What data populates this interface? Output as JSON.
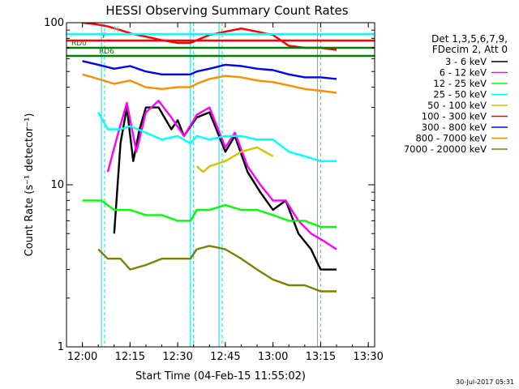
{
  "chart_data": {
    "type": "line",
    "title": "HESSI Observing Summary Count Rates",
    "xlabel": "Start Time (04-Feb-15 11:55:02)",
    "ylabel": "Count Rate (s⁻¹ detector⁻¹)",
    "y_scale": "log",
    "ylim": [
      1,
      100
    ],
    "xlim": [
      "11:55",
      "13:32"
    ],
    "x_ticks": [
      "12:00",
      "12:15",
      "12:30",
      "12:45",
      "13:00",
      "13:15",
      "13:30"
    ],
    "y_ticks": [
      "1",
      "10",
      "100"
    ],
    "grid": false,
    "legend_placement": "right",
    "legend_header": [
      "Det 1,3,5,6,7,9,",
      "FDecim 2, Att 0"
    ],
    "footer_date": "30-Jul-2017 05:31",
    "flags": [
      {
        "label": "RD0",
        "color": "#008000"
      },
      {
        "label": "RD6",
        "color": "#008000"
      },
      {
        "label": "F",
        "color": "#ff0000"
      },
      {
        "label": "N",
        "color": "#00ffff"
      }
    ],
    "gaps": [
      {
        "start": "12:06",
        "end": "12:07"
      },
      {
        "start": "12:34",
        "end": "12:35"
      },
      {
        "start": "12:43",
        "end": "12:44"
      },
      {
        "start": "13:14",
        "end": "13:15"
      }
    ],
    "series": [
      {
        "name": "3 - 6 keV",
        "color": "#000000",
        "values": [
          [
            "12:10",
            5
          ],
          [
            "12:12",
            18
          ],
          [
            "12:14",
            30
          ],
          [
            "12:16",
            14
          ],
          [
            "12:18",
            22
          ],
          [
            "12:20",
            30
          ],
          [
            "12:24",
            30
          ],
          [
            "12:28",
            22
          ],
          [
            "12:30",
            25
          ],
          [
            "12:32",
            20
          ],
          [
            "12:36",
            26
          ],
          [
            "12:40",
            28
          ],
          [
            "12:45",
            16
          ],
          [
            "12:48",
            20
          ],
          [
            "12:52",
            12
          ],
          [
            "12:56",
            9
          ],
          [
            "13:00",
            7
          ],
          [
            "13:04",
            8
          ],
          [
            "13:08",
            5
          ],
          [
            "13:12",
            4
          ],
          [
            "13:15",
            3
          ],
          [
            "13:20",
            3
          ]
        ]
      },
      {
        "name": "6 - 12 keV",
        "color": "#ff00ff",
        "values": [
          [
            "12:08",
            12
          ],
          [
            "12:11",
            20
          ],
          [
            "12:14",
            32
          ],
          [
            "12:17",
            16
          ],
          [
            "12:20",
            28
          ],
          [
            "12:24",
            33
          ],
          [
            "12:28",
            26
          ],
          [
            "12:32",
            20
          ],
          [
            "12:36",
            27
          ],
          [
            "12:40",
            30
          ],
          [
            "12:45",
            17
          ],
          [
            "12:48",
            21
          ],
          [
            "12:52",
            13
          ],
          [
            "12:56",
            10
          ],
          [
            "13:00",
            8
          ],
          [
            "13:04",
            8
          ],
          [
            "13:08",
            6
          ],
          [
            "13:12",
            5
          ],
          [
            "13:16",
            4.5
          ],
          [
            "13:20",
            4
          ]
        ]
      },
      {
        "name": "12 - 25 keV",
        "color": "#00ff00",
        "values": [
          [
            "12:00",
            8
          ],
          [
            "12:06",
            8
          ],
          [
            "12:10",
            7
          ],
          [
            "12:15",
            7
          ],
          [
            "12:20",
            6.5
          ],
          [
            "12:25",
            6.5
          ],
          [
            "12:30",
            6
          ],
          [
            "12:34",
            6
          ],
          [
            "12:36",
            7
          ],
          [
            "12:40",
            7
          ],
          [
            "12:45",
            7.5
          ],
          [
            "12:50",
            7
          ],
          [
            "12:55",
            7
          ],
          [
            "13:00",
            6.5
          ],
          [
            "13:05",
            6
          ],
          [
            "13:10",
            6
          ],
          [
            "13:15",
            5.5
          ],
          [
            "13:20",
            5.5
          ]
        ]
      },
      {
        "name": "25 - 50 keV",
        "color": "#00ffff",
        "values": [
          [
            "12:05",
            28
          ],
          [
            "12:08",
            22
          ],
          [
            "12:12",
            22
          ],
          [
            "12:15",
            23
          ],
          [
            "12:20",
            21
          ],
          [
            "12:25",
            19
          ],
          [
            "12:30",
            20
          ],
          [
            "12:34",
            18
          ],
          [
            "12:36",
            20
          ],
          [
            "12:40",
            19
          ],
          [
            "12:45",
            20
          ],
          [
            "12:50",
            20
          ],
          [
            "12:55",
            19
          ],
          [
            "13:00",
            19
          ],
          [
            "13:05",
            16
          ],
          [
            "13:10",
            15
          ],
          [
            "13:15",
            14
          ],
          [
            "13:20",
            14
          ]
        ]
      },
      {
        "name": "50 - 100 keV",
        "color": "#d4c400",
        "values": [
          [
            "12:36",
            13
          ],
          [
            "12:38",
            12
          ],
          [
            "12:40",
            13
          ],
          [
            "12:45",
            14
          ],
          [
            "12:50",
            16
          ],
          [
            "12:55",
            17
          ],
          [
            "13:00",
            15
          ]
        ]
      },
      {
        "name": "100 - 300 keV",
        "color": "#ff0000",
        "values": [
          [
            "12:00",
            100
          ],
          [
            "12:04",
            98
          ],
          [
            "12:08",
            95
          ],
          [
            "12:12",
            90
          ],
          [
            "12:16",
            85
          ],
          [
            "12:20",
            82
          ],
          [
            "12:25",
            78
          ],
          [
            "12:30",
            75
          ],
          [
            "12:34",
            75
          ],
          [
            "12:36",
            78
          ],
          [
            "12:40",
            84
          ],
          [
            "12:45",
            88
          ],
          [
            "12:50",
            92
          ],
          [
            "12:55",
            88
          ],
          [
            "13:00",
            84
          ],
          [
            "13:05",
            72
          ],
          [
            "13:10",
            70
          ],
          [
            "13:15",
            70
          ],
          [
            "13:20",
            68
          ]
        ]
      },
      {
        "name": "300 - 800 keV",
        "color": "#0000ff",
        "values": [
          [
            "12:00",
            58
          ],
          [
            "12:05",
            55
          ],
          [
            "12:10",
            52
          ],
          [
            "12:15",
            54
          ],
          [
            "12:20",
            50
          ],
          [
            "12:25",
            48
          ],
          [
            "12:30",
            48
          ],
          [
            "12:34",
            48
          ],
          [
            "12:36",
            50
          ],
          [
            "12:40",
            52
          ],
          [
            "12:45",
            55
          ],
          [
            "12:50",
            54
          ],
          [
            "12:55",
            52
          ],
          [
            "13:00",
            51
          ],
          [
            "13:05",
            48
          ],
          [
            "13:10",
            46
          ],
          [
            "13:15",
            46
          ],
          [
            "13:20",
            45
          ]
        ]
      },
      {
        "name": "800 - 7000 keV",
        "color": "#ff8c00",
        "values": [
          [
            "12:00",
            48
          ],
          [
            "12:05",
            45
          ],
          [
            "12:10",
            42
          ],
          [
            "12:15",
            44
          ],
          [
            "12:20",
            40
          ],
          [
            "12:25",
            39
          ],
          [
            "12:30",
            40
          ],
          [
            "12:34",
            40
          ],
          [
            "12:36",
            42
          ],
          [
            "12:40",
            45
          ],
          [
            "12:45",
            47
          ],
          [
            "12:50",
            46
          ],
          [
            "12:55",
            44
          ],
          [
            "13:00",
            43
          ],
          [
            "13:05",
            41
          ],
          [
            "13:10",
            39
          ],
          [
            "13:15",
            38
          ],
          [
            "13:20",
            37
          ]
        ]
      },
      {
        "name": "7000 - 20000 keV",
        "color": "#808000",
        "values": [
          [
            "12:05",
            4
          ],
          [
            "12:08",
            3.5
          ],
          [
            "12:12",
            3.5
          ],
          [
            "12:15",
            3
          ],
          [
            "12:20",
            3.2
          ],
          [
            "12:25",
            3.5
          ],
          [
            "12:30",
            3.5
          ],
          [
            "12:34",
            3.5
          ],
          [
            "12:36",
            4
          ],
          [
            "12:40",
            4.2
          ],
          [
            "12:45",
            4
          ],
          [
            "12:50",
            3.5
          ],
          [
            "12:55",
            3
          ],
          [
            "13:00",
            2.6
          ],
          [
            "13:05",
            2.4
          ],
          [
            "13:10",
            2.4
          ],
          [
            "13:15",
            2.2
          ],
          [
            "13:20",
            2.2
          ]
        ]
      }
    ]
  }
}
